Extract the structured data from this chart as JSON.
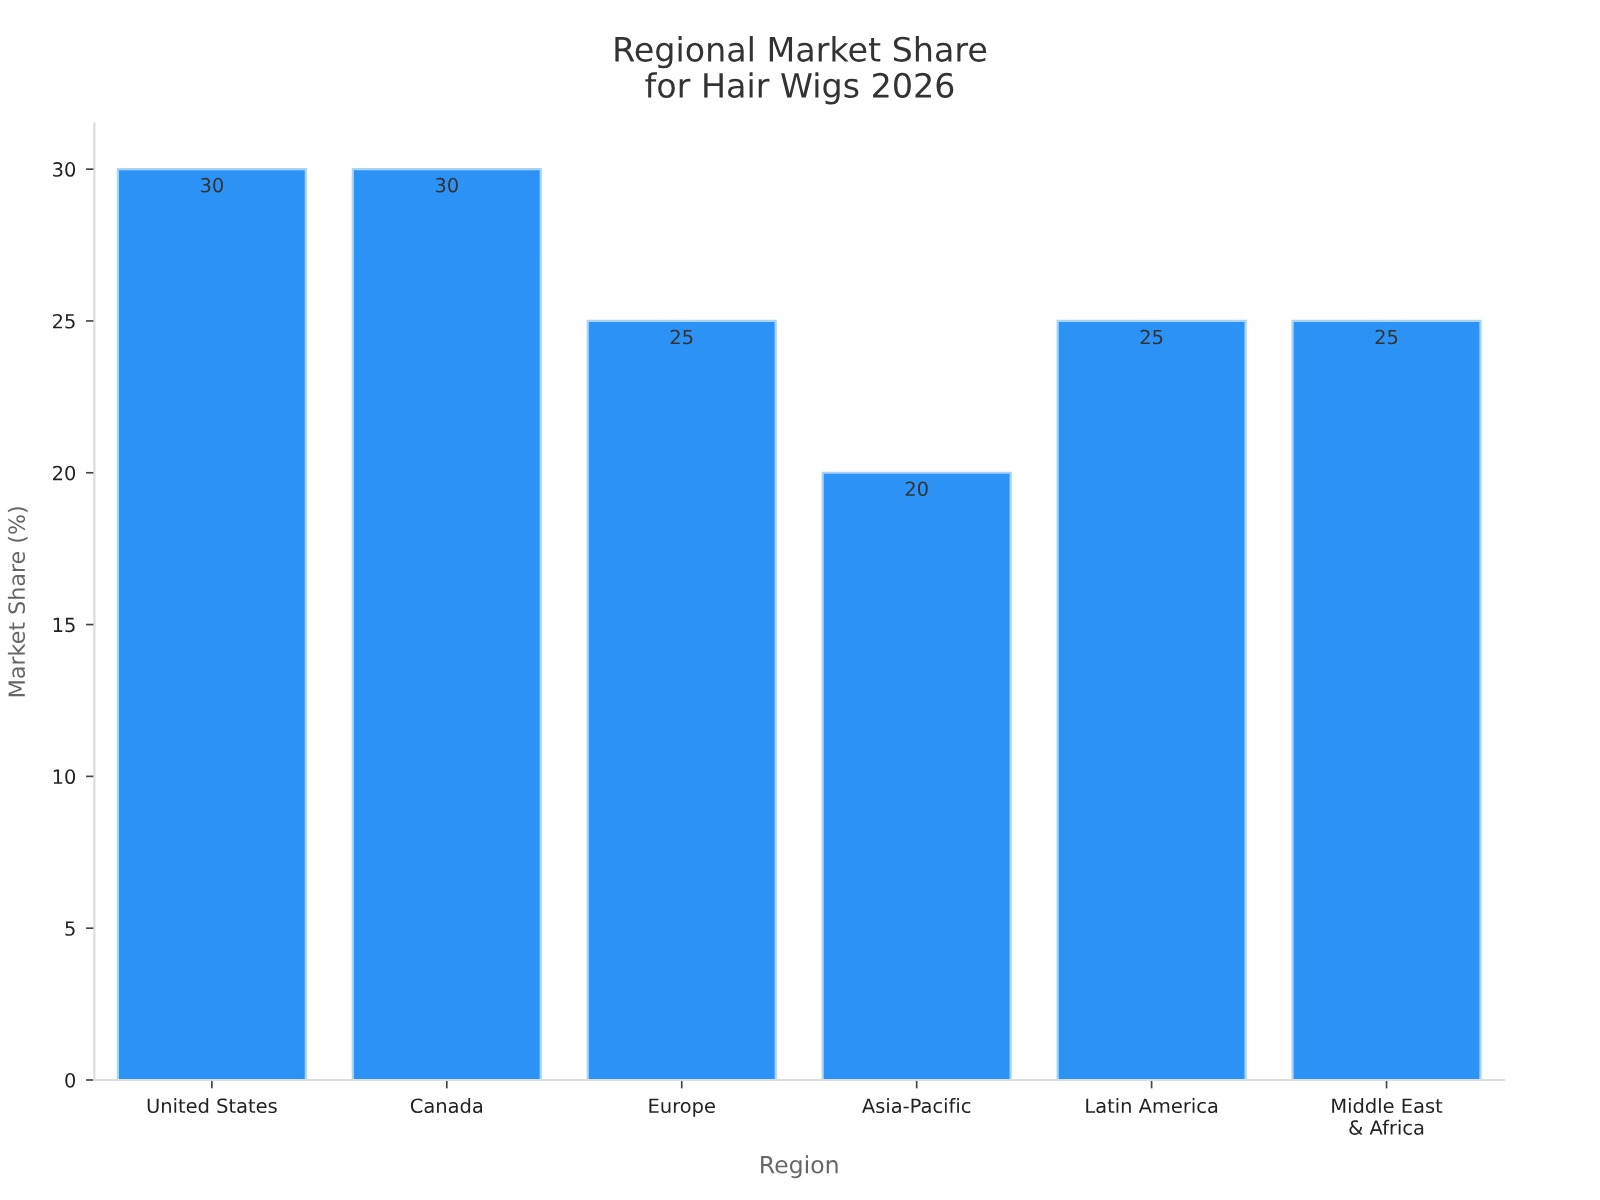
{
  "chart_data": {
    "type": "bar",
    "title": "Regional Market Share\nfor Hair Wigs 2026",
    "xlabel": "Region",
    "ylabel": "Market Share (%)",
    "categories": [
      "United States",
      "Canada",
      "Europe",
      "Asia-Pacific",
      "Latin America",
      "Middle East\n& Africa"
    ],
    "values": [
      30,
      30,
      25,
      20,
      25,
      25
    ],
    "color": "#2d92f6",
    "ylim": [
      0,
      31.5
    ],
    "yticks": [
      0,
      5,
      10,
      15,
      20,
      25,
      30
    ],
    "grid": false,
    "data_labels": true
  }
}
